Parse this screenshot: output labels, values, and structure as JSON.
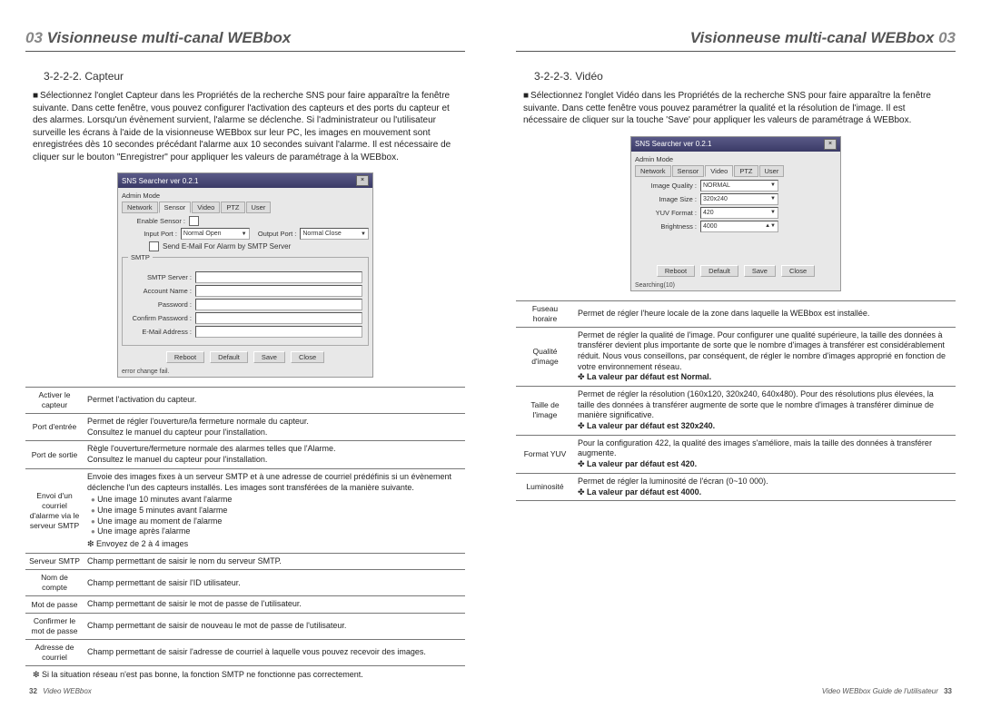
{
  "headers": {
    "left_num": "03",
    "left_title": "Visionneuse multi-canal WEBbox",
    "right_title": "Visionneuse multi-canal WEBbox",
    "right_num": "03"
  },
  "left": {
    "section": "3-2-2-2. Capteur",
    "intro": "Sélectionnez l'onglet Capteur dans les Propriétés de la recherche SNS pour faire apparaître la fenêtre suivante. Dans cette fenêtre, vous pouvez configurer l'activation des capteurs et des ports du capteur et des alarmes. Lorsqu'un évènement survient, l'alarme se déclenche. Si l'administrateur ou l'utilisateur surveille les écrans à l'aide de la visionneuse WEBbox sur leur PC, les images en mouvement sont enregistrées dès 10 secondes précédant l'alarme aux 10 secondes suivant l'alarme. Il est nécessaire de cliquer sur le bouton \"Enregistrer\" pour appliquer les valeurs de paramétrage à la WEBbox.",
    "ss": {
      "title": "SNS Searcher ver 0.2.1",
      "mode": "Admin Mode",
      "tabs": [
        "Network",
        "Sensor",
        "Video",
        "PTZ",
        "User"
      ],
      "enable": "Enable Sensor :",
      "inport": "Input Port :",
      "inport_v": "Normal Open",
      "outport": "Output Port :",
      "outport_v": "Normal Close",
      "sendmail": "Send E-Mail For Alarm by SMTP Server",
      "group": "SMTP",
      "f1": "SMTP Server :",
      "f2": "Account Name :",
      "f3": "Password :",
      "f4": "Confirm Password :",
      "f5": "E-Mail Address :",
      "btns": [
        "Reboot",
        "Default",
        "Save",
        "Close"
      ],
      "status": "error change fail."
    },
    "table": [
      {
        "k": "Activer le capteur",
        "v": "Permet l'activation du capteur."
      },
      {
        "k": "Port d'entrée",
        "v": "Permet de régler l'ouverture/la fermeture normale du capteur.\nConsultez le manuel du capteur pour l'installation."
      },
      {
        "k": "Port de sortie",
        "v": "Règle l'ouverture/fermeture normale des alarmes telles que l'Alarme.\nConsultez le manuel du capteur pour l'installation."
      },
      {
        "k": "Envoi d'un courriel d'alarme via le serveur SMTP",
        "v_pre": "Envoie des images fixes à un serveur SMTP et à une adresse de courriel prédéfinis si un évènement déclenche l'un des capteurs installés. Les images sont transférées de la manière suivante.",
        "items": [
          "Une image 10 minutes avant l'alarme",
          "Une image 5 minutes avant l'alarme",
          "Une image au moment de l'alarme",
          "Une image après l'alarme"
        ],
        "v_post": "❇ Envoyez de 2 à 4 images"
      },
      {
        "k": "Serveur SMTP",
        "v": "Champ permettant de saisir le nom du serveur SMTP."
      },
      {
        "k": "Nom de compte",
        "v": "Champ permettant de saisir l'ID utilisateur."
      },
      {
        "k": "Mot de passe",
        "v": "Champ permettant de saisir le mot de passe de l'utilisateur."
      },
      {
        "k": "Confirmer le mot de passe",
        "v": "Champ permettant de saisir de nouveau le mot de passe de l'utilisateur."
      },
      {
        "k": "Adresse de courriel",
        "v": "Champ permettant de saisir l'adresse de courriel à laquelle vous pouvez recevoir des images."
      }
    ],
    "footnote": "❇ Si la situation réseau n'est pas bonne, la fonction SMTP ne fonctionne pas correctement.",
    "footer_page": "32",
    "footer_text": "Video WEBbox"
  },
  "right": {
    "section": "3-2-2-3. Vidéo",
    "intro": "Sélectionnez l'onglet Vidéo dans les Propriétés de la recherche SNS pour faire apparaître la fenêtre suivante. Dans cette fenêtre vous pouvez paramétrer la qualité et la résolution de l'image. Il est nécessaire de cliquer sur la touche 'Save' pour appliquer les valeurs de paramétrage á WEBbox.",
    "ss": {
      "title": "SNS Searcher ver 0.2.1",
      "mode": "Admin Mode",
      "tabs": [
        "Network",
        "Sensor",
        "Video",
        "PTZ",
        "User"
      ],
      "f1": "Image Quality :",
      "v1": "NORMAL",
      "f2": "Image Size :",
      "v2": "320x240",
      "f3": "YUV Format :",
      "v3": "420",
      "f4": "Brightness :",
      "v4": "4000",
      "btns": [
        "Reboot",
        "Default",
        "Save",
        "Close"
      ],
      "status": "Searching(10)"
    },
    "table": [
      {
        "k": "Fuseau horaire",
        "v": "Permet de régler l'heure locale de la zone dans laquelle la WEBbox est installée."
      },
      {
        "k": "Qualité d'image",
        "v": "Permet de régler la qualité de l'image. Pour configurer une qualité supérieure, la taille des données à transférer devient plus importante de sorte que le nombre d'images à transférer est considérablement réduit. Nous vous conseillons, par conséquent, de régler le nombre d'images approprié en fonction de votre environnement réseau.",
        "d": "La valeur par défaut est Normal."
      },
      {
        "k": "Taille de l'image",
        "v": "Permet de régler la résolution (160x120, 320x240, 640x480). Pour des résolutions plus élevées, la taille des données à transférer augmente de sorte que le nombre d'images à transférer diminue de manière significative.",
        "d": "La valeur par défaut est 320x240."
      },
      {
        "k": "Format YUV",
        "v": "Pour la configuration 422, la qualité des images s'améliore, mais la taille des données à transférer augmente.",
        "d": "La valeur par défaut est 420."
      },
      {
        "k": "Luminosité",
        "v": "Permet de régler la luminosité de l'écran (0~10 000).",
        "d": "La valeur par défaut est 4000."
      }
    ],
    "footer_text": "Video WEBbox Guide de l'utilisateur",
    "footer_page": "33"
  }
}
